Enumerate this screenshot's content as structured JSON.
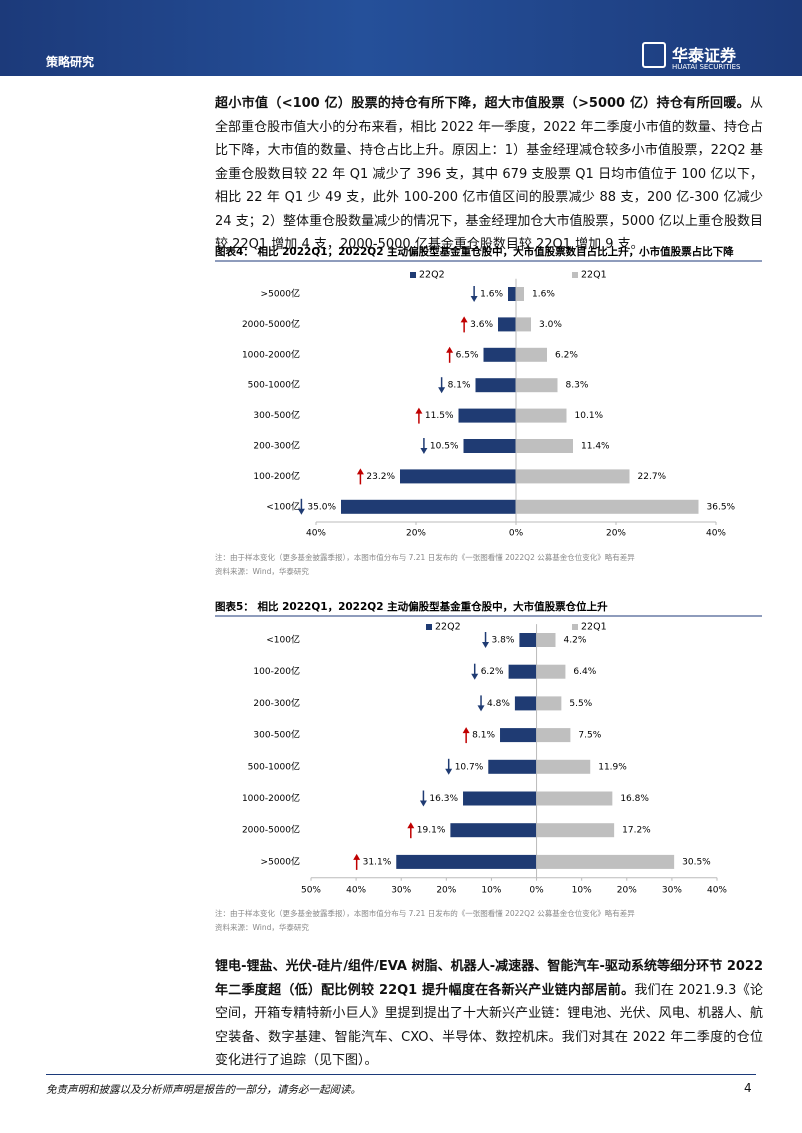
{
  "header": {
    "section": "策略研究",
    "logo": "华泰证券",
    "logo_en": "HUATAI SECURITIES"
  },
  "paragraphs": [
    {
      "bold": "超小市值（<100 亿）股票的持仓有所下降，超大市值股票（>5000 亿）持仓有所回暖。",
      "text": "从全部重仓股市值大小的分布来看，相比 2022 年一季度，2022 年二季度小市值的数量、持仓占比下降，大市值的数量、持仓占比上升。原因上：1）基金经理减仓较多小市值股票，22Q2 基金重仓股数目较 22 年 Q1 减少了 396 支，其中 679 支股票 Q1 日均市值位于 100 亿以下，相比 22 年 Q1 少 49 支，此外 100-200 亿市值区间的股票减少 88 支，200 亿-300 亿减少 24 支；2）整体重仓股数量减少的情况下，基金经理加仓大市值股票，5000 亿以上重仓股数目较 22Q1 增加 4 支，2000-5000 亿基金重仓股数目较 22Q1 增加 9 支。"
    },
    {
      "bold": "锂电-锂盐、光伏-硅片/组件/EVA 树脂、机器人-减速器、智能汽车-驱动系统等细分环节 2022 年二季度超（低）配比例较 22Q1 提升幅度在各新兴产业链内部居前。",
      "text": "我们在 2021.9.3《论空间，开箱专精特新小巨人》里提到提出了十大新兴产业链：锂电池、光伏、风电、机器人、航空装备、数字基建、智能汽车、CXO、半导体、数控机床。我们对其在 2022 年二季度的仓位变化进行了追踪（见下图）。"
    }
  ],
  "chart_data": [
    {
      "type": "butterfly",
      "title": "图表4：  相比 2022Q1，2022Q2 主动偏股型基金重仓股中，大市值股票数目占比上升，小市值股票占比下降",
      "categories": [
        ">5000亿",
        "2000-5000亿",
        "1000-2000亿",
        "500-1000亿",
        "300-500亿",
        "200-300亿",
        "100-200亿",
        "<100亿"
      ],
      "series": [
        {
          "name": "22Q2",
          "color": "#1f3b73",
          "side": "left",
          "values": [
            1.6,
            3.6,
            6.5,
            8.1,
            11.5,
            10.5,
            23.2,
            35.0
          ],
          "value_labels": [
            "1.6%",
            "3.6%",
            "6.5%",
            "8.1%",
            "11.5%",
            "10.5%",
            "23.2%",
            "35.0%"
          ]
        },
        {
          "name": "22Q1",
          "color": "#bfbfbf",
          "side": "right",
          "values": [
            1.6,
            3.0,
            6.2,
            8.3,
            10.1,
            11.4,
            22.7,
            36.5
          ],
          "value_labels": [
            "1.6%",
            "3.0%",
            "6.2%",
            "8.3%",
            "10.1%",
            "11.4%",
            "22.7%",
            "36.5%"
          ]
        }
      ],
      "trend": [
        "down",
        "up",
        "up",
        "down",
        "up",
        "down",
        "up",
        "down"
      ],
      "trend_colors": {
        "up": "#c00000",
        "down": "#1f3b73"
      },
      "xlim": [
        -40,
        40
      ],
      "xticks": [
        {
          "value": -40,
          "label": "40%"
        },
        {
          "value": -20,
          "label": "20%"
        },
        {
          "value": 0,
          "label": "0%"
        },
        {
          "value": 20,
          "label": "20%"
        },
        {
          "value": 40,
          "label": "40%"
        }
      ],
      "note": "注：由于样本变化（更多基金披露季报），本图市值分布与 7.21 日发布的《一张图看懂 2022Q2 公募基金仓位变化》略有差异",
      "source": "资料来源：Wind，华泰研究"
    },
    {
      "type": "butterfly",
      "title": "图表5：  相比 2022Q1，2022Q2 主动偏股型基金重仓股中，大市值股票仓位上升",
      "categories": [
        "<100亿",
        "100-200亿",
        "200-300亿",
        "300-500亿",
        "500-1000亿",
        "1000-2000亿",
        "2000-5000亿",
        ">5000亿"
      ],
      "series": [
        {
          "name": "22Q2",
          "color": "#1f3b73",
          "side": "left",
          "values": [
            3.8,
            6.2,
            4.8,
            8.1,
            10.7,
            16.3,
            19.1,
            31.1
          ],
          "value_labels": [
            "3.8%",
            "6.2%",
            "4.8%",
            "8.1%",
            "10.7%",
            "16.3%",
            "19.1%",
            "31.1%"
          ]
        },
        {
          "name": "22Q1",
          "color": "#bfbfbf",
          "side": "right",
          "values": [
            4.2,
            6.4,
            5.5,
            7.5,
            11.9,
            16.8,
            17.2,
            30.5
          ],
          "value_labels": [
            "4.2%",
            "6.4%",
            "5.5%",
            "7.5%",
            "11.9%",
            "16.8%",
            "17.2%",
            "30.5%"
          ]
        }
      ],
      "trend": [
        "down",
        "down",
        "down",
        "up",
        "down",
        "down",
        "up",
        "up"
      ],
      "trend_colors": {
        "up": "#c00000",
        "down": "#1f3b73"
      },
      "xlim": [
        -50,
        40
      ],
      "xticks": [
        {
          "value": -50,
          "label": "50%"
        },
        {
          "value": -40,
          "label": "40%"
        },
        {
          "value": -30,
          "label": "30%"
        },
        {
          "value": -20,
          "label": "20%"
        },
        {
          "value": -10,
          "label": "10%"
        },
        {
          "value": 0,
          "label": "0%"
        },
        {
          "value": 10,
          "label": "10%"
        },
        {
          "value": 20,
          "label": "20%"
        },
        {
          "value": 30,
          "label": "30%"
        },
        {
          "value": 40,
          "label": "40%"
        }
      ],
      "note": "注：由于样本变化（更多基金披露季报），本图市值分布与 7.21 日发布的《一张图看懂 2022Q2 公募基金仓位变化》略有差异",
      "source": "资料来源：Wind，华泰研究"
    }
  ],
  "footer": {
    "disclaimer": "免责声明和披露以及分析师声明是报告的一部分，请务必一起阅读。",
    "page": 4
  }
}
